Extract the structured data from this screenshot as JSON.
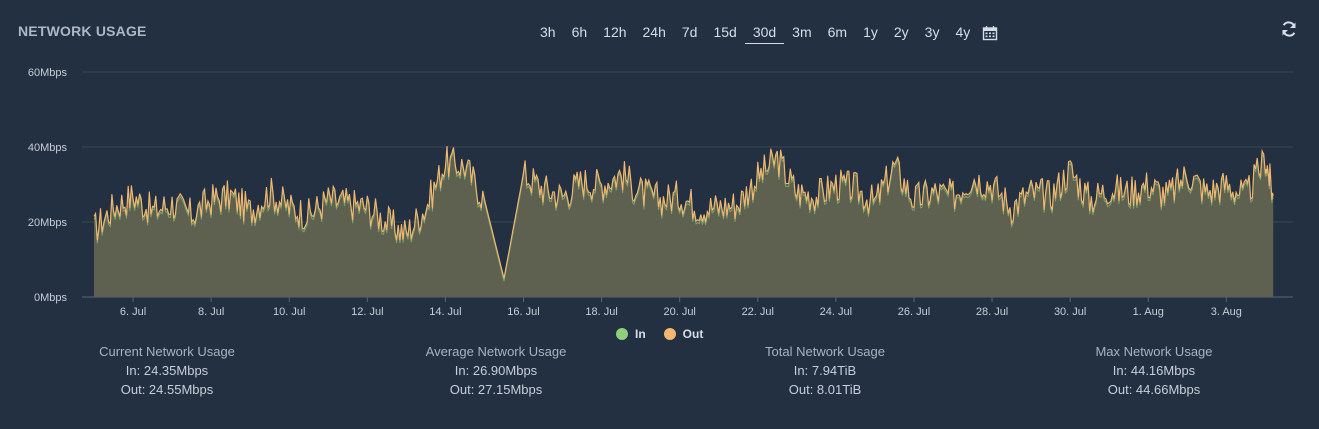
{
  "header": {
    "title": "NETWORK USAGE",
    "ranges": [
      "3h",
      "6h",
      "12h",
      "24h",
      "7d",
      "15d",
      "30d",
      "3m",
      "6m",
      "1y",
      "2y",
      "3y",
      "4y"
    ],
    "active_range": "30d",
    "calendar_icon": "calendar-icon",
    "refresh_icon": "refresh-icon"
  },
  "colors": {
    "background": "#233041",
    "in": "#8fcf7d",
    "out": "#f4b771",
    "area_fill": "#5e614f",
    "grid": "#3a4753"
  },
  "legend": [
    {
      "label": "In",
      "color": "#8fcf7d"
    },
    {
      "label": "Out",
      "color": "#f4b771"
    }
  ],
  "stats": [
    {
      "title": "Current Network Usage",
      "in": "In: 24.35Mbps",
      "out": "Out: 24.55Mbps"
    },
    {
      "title": "Average Network Usage",
      "in": "In: 26.90Mbps",
      "out": "Out: 27.15Mbps"
    },
    {
      "title": "Total Network Usage",
      "in": "In: 7.94TiB",
      "out": "Out: 8.01TiB"
    },
    {
      "title": "Max Network Usage",
      "in": "In: 44.16Mbps",
      "out": "Out: 44.66Mbps"
    }
  ],
  "chart_data": {
    "type": "area",
    "title": "Network Usage",
    "x_unit": "day offset from 5 Jul",
    "xlim": [
      0,
      30.4
    ],
    "ylim": [
      0,
      60
    ],
    "y_ticks": [
      0,
      20,
      40,
      60
    ],
    "y_tick_labels": [
      "0Mbps",
      "20Mbps",
      "40Mbps",
      "60Mbps"
    ],
    "x_ticks": [
      1,
      3,
      5,
      7,
      9,
      11,
      13,
      15,
      17,
      19,
      21,
      23,
      25,
      27,
      29
    ],
    "x_tick_labels": [
      "6. Jul",
      "8. Jul",
      "10. Jul",
      "12. Jul",
      "14. Jul",
      "16. Jul",
      "18. Jul",
      "20. Jul",
      "22. Jul",
      "24. Jul",
      "26. Jul",
      "28. Jul",
      "30. Jul",
      "1. Aug",
      "3. Aug"
    ],
    "series": [
      {
        "name": "Out",
        "x": [
          0,
          0.5,
          1,
          1.5,
          2,
          2.5,
          3,
          3.5,
          4,
          4.5,
          5,
          5.5,
          6,
          6.5,
          7,
          7.5,
          8,
          8.5,
          9,
          9.5,
          10,
          10.5,
          11,
          11.5,
          12,
          12.5,
          13,
          13.5,
          14,
          14.5,
          15,
          15.5,
          16,
          16.5,
          17,
          17.5,
          18,
          18.5,
          19,
          19.5,
          20,
          20.5,
          21,
          21.5,
          22,
          22.5,
          23,
          23.5,
          24,
          24.5,
          25,
          25.5,
          26,
          26.5,
          27,
          27.5,
          28,
          28.5,
          29,
          29.5,
          30,
          30.2
        ],
        "values": [
          18,
          24,
          27,
          23,
          25,
          22,
          26,
          27,
          23,
          28,
          24,
          22,
          26,
          25,
          24,
          20,
          17,
          24,
          36,
          35,
          26,
          5,
          33,
          29,
          27,
          31,
          30,
          33,
          28,
          26,
          27,
          24,
          24,
          25,
          32,
          37,
          28,
          27,
          30,
          29,
          25,
          35,
          26,
          28,
          27,
          32,
          30,
          24,
          28,
          27,
          34,
          26,
          29,
          28,
          30,
          27,
          33,
          28,
          30,
          27,
          37,
          27
        ]
      },
      {
        "name": "In",
        "x": [
          0,
          0.5,
          1,
          1.5,
          2,
          2.5,
          3,
          3.5,
          4,
          4.5,
          5,
          5.5,
          6,
          6.5,
          7,
          7.5,
          8,
          8.5,
          9,
          9.5,
          10,
          10.5,
          11,
          11.5,
          12,
          12.5,
          13,
          13.5,
          14,
          14.5,
          15,
          15.5,
          16,
          16.5,
          17,
          17.5,
          18,
          18.5,
          19,
          19.5,
          20,
          20.5,
          21,
          21.5,
          22,
          22.5,
          23,
          23.5,
          24,
          24.5,
          25,
          25.5,
          26,
          26.5,
          27,
          27.5,
          28,
          28.5,
          29,
          29.5,
          30,
          30.2
        ],
        "values": [
          17,
          23,
          26,
          22,
          24,
          21,
          25,
          26,
          22,
          27,
          23,
          21,
          25,
          24,
          23,
          19,
          16,
          23,
          35,
          34,
          25,
          5,
          32,
          28,
          26,
          30,
          29,
          32,
          27,
          25,
          26,
          23,
          23,
          24,
          31,
          36,
          27,
          26,
          29,
          28,
          24,
          34,
          25,
          27,
          26,
          31,
          29,
          23,
          27,
          26,
          33,
          25,
          28,
          27,
          29,
          26,
          36,
          27,
          29,
          26,
          36,
          26
        ]
      }
    ]
  }
}
